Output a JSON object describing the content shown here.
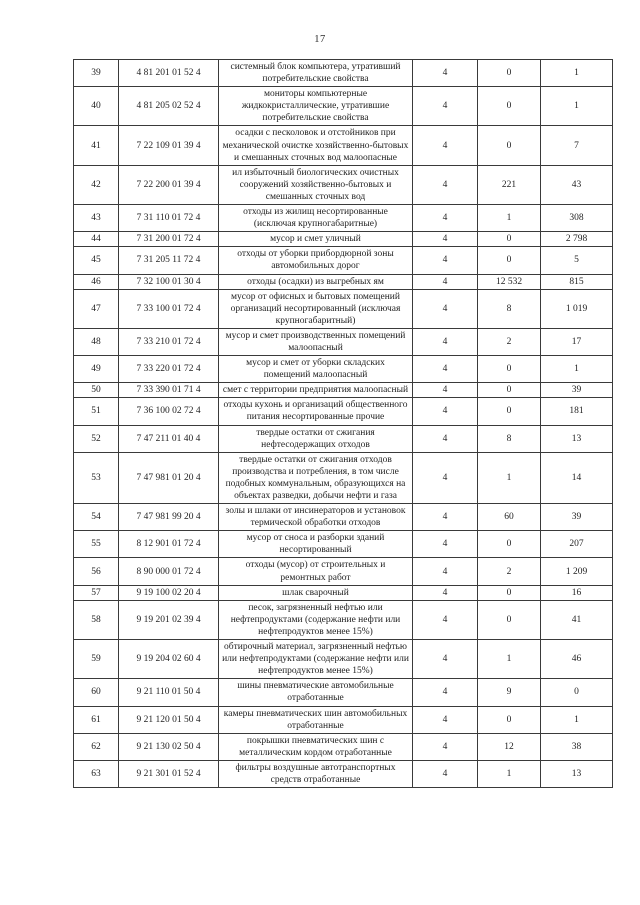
{
  "page": {
    "number": "17"
  },
  "table": {
    "rows": [
      {
        "num": "39",
        "code": "4 81 201 01 52 4",
        "name": "системный блок компьютера, утративший потребительские свойства",
        "class": "4",
        "val1": "0",
        "val2": "1"
      },
      {
        "num": "40",
        "code": "4 81 205 02 52 4",
        "name": "мониторы компьютерные жидкокристаллические, утратившие потребительские свойства",
        "class": "4",
        "val1": "0",
        "val2": "1"
      },
      {
        "num": "41",
        "code": "7 22 109 01 39 4",
        "name": "осадки с песколовок и отстойников при механической очистке хозяйственно-бытовых и смешанных сточных вод малоопасные",
        "class": "4",
        "val1": "0",
        "val2": "7"
      },
      {
        "num": "42",
        "code": "7 22 200 01 39 4",
        "name": "ил избыточный биологических очистных сооружений хозяйственно-бытовых и смешанных сточных вод",
        "class": "4",
        "val1": "221",
        "val2": "43"
      },
      {
        "num": "43",
        "code": "7 31 110 01 72 4",
        "name": "отходы из жилищ несортированные (исключая крупногабаритные)",
        "class": "4",
        "val1": "1",
        "val2": "308"
      },
      {
        "num": "44",
        "code": "7 31 200 01 72 4",
        "name": "мусор и смет уличный",
        "class": "4",
        "val1": "0",
        "val2": "2 798"
      },
      {
        "num": "45",
        "code": "7 31 205 11 72 4",
        "name": "отходы от уборки прибордюрной зоны автомобильных дорог",
        "class": "4",
        "val1": "0",
        "val2": "5"
      },
      {
        "num": "46",
        "code": "7 32 100 01 30 4",
        "name": "отходы (осадки) из выгребных ям",
        "class": "4",
        "val1": "12 532",
        "val2": "815"
      },
      {
        "num": "47",
        "code": "7 33 100 01 72 4",
        "name": "мусор от офисных и бытовых помещений организаций несортированный (исключая крупногабаритный)",
        "class": "4",
        "val1": "8",
        "val2": "1 019"
      },
      {
        "num": "48",
        "code": "7 33 210 01 72 4",
        "name": "мусор и смет производственных помещений малоопасный",
        "class": "4",
        "val1": "2",
        "val2": "17"
      },
      {
        "num": "49",
        "code": "7 33 220 01 72 4",
        "name": "мусор и смет от уборки складских помещений малоопасный",
        "class": "4",
        "val1": "0",
        "val2": "1"
      },
      {
        "num": "50",
        "code": "7 33 390 01 71 4",
        "name": "смет с территории предприятия малоопасный",
        "class": "4",
        "val1": "0",
        "val2": "39"
      },
      {
        "num": "51",
        "code": "7 36 100 02 72 4",
        "name": "отходы кухонь и организаций общественного питания несортированные прочие",
        "class": "4",
        "val1": "0",
        "val2": "181"
      },
      {
        "num": "52",
        "code": "7 47 211 01 40 4",
        "name": "твердые остатки от сжигания нефтесодержащих отходов",
        "class": "4",
        "val1": "8",
        "val2": "13"
      },
      {
        "num": "53",
        "code": "7 47 981 01 20 4",
        "name": "твердые остатки от сжигания отходов производства и потребления, в том числе подобных коммунальным, образующихся на объектах разведки, добычи нефти и газа",
        "class": "4",
        "val1": "1",
        "val2": "14"
      },
      {
        "num": "54",
        "code": "7 47 981 99 20 4",
        "name": "золы и шлаки от инсинераторов и установок термической обработки отходов",
        "class": "4",
        "val1": "60",
        "val2": "39"
      },
      {
        "num": "55",
        "code": "8 12 901 01 72 4",
        "name": "мусор от сноса и разборки зданий несортированный",
        "class": "4",
        "val1": "0",
        "val2": "207"
      },
      {
        "num": "56",
        "code": "8 90 000 01 72 4",
        "name": "отходы (мусор) от строительных и ремонтных работ",
        "class": "4",
        "val1": "2",
        "val2": "1 209"
      },
      {
        "num": "57",
        "code": "9 19 100 02 20 4",
        "name": "шлак сварочный",
        "class": "4",
        "val1": "0",
        "val2": "16"
      },
      {
        "num": "58",
        "code": "9 19 201 02 39 4",
        "name": "песок, загрязненный нефтью или нефтепродуктами (содержание нефти или нефтепродуктов менее 15%)",
        "class": "4",
        "val1": "0",
        "val2": "41"
      },
      {
        "num": "59",
        "code": "9 19 204 02 60 4",
        "name": "обтирочный материал, загрязненный нефтью или нефтепродуктами (содержание нефти или нефтепродуктов менее 15%)",
        "class": "4",
        "val1": "1",
        "val2": "46"
      },
      {
        "num": "60",
        "code": "9 21 110 01 50 4",
        "name": "шины пневматические автомобильные отработанные",
        "class": "4",
        "val1": "9",
        "val2": "0"
      },
      {
        "num": "61",
        "code": "9 21 120 01 50 4",
        "name": "камеры пневматических шин автомобильных отработанные",
        "class": "4",
        "val1": "0",
        "val2": "1"
      },
      {
        "num": "62",
        "code": "9 21 130 02 50 4",
        "name": "покрышки пневматических шин с металлическим кордом отработанные",
        "class": "4",
        "val1": "12",
        "val2": "38"
      },
      {
        "num": "63",
        "code": "9 21 301 01 52 4",
        "name": "фильтры воздушные автотранспортных средств отработанные",
        "class": "4",
        "val1": "1",
        "val2": "13"
      }
    ]
  }
}
